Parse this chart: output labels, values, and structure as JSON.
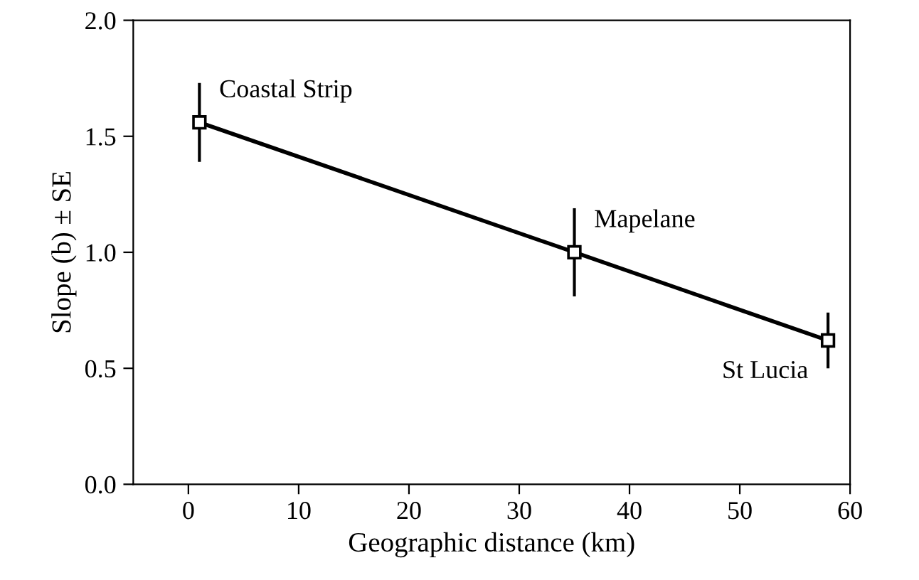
{
  "chart_data": {
    "type": "line",
    "xlabel": "Geographic distance (km)",
    "ylabel": "Slope (b) ± SE",
    "x": [
      1,
      35,
      58
    ],
    "series": [
      {
        "color": "#000000",
        "values": [
          1.56,
          1.0,
          0.62
        ],
        "errors": [
          0.17,
          0.19,
          0.12
        ]
      }
    ],
    "marker": "square",
    "line_style": "solid",
    "xlim": [
      -5,
      60
    ],
    "xticks": [
      0,
      10,
      20,
      30,
      40,
      50,
      60
    ],
    "ylim": [
      0,
      2.0
    ],
    "yticks": [
      {
        "value": 0,
        "label": "0.0"
      },
      {
        "value": 0.5,
        "label": "0.5"
      },
      {
        "value": 1.0,
        "label": "1.0"
      },
      {
        "value": 1.5,
        "label": "1.5"
      },
      {
        "value": 2.0,
        "label": "2.0"
      }
    ],
    "grid": false,
    "annotations": [
      {
        "text": "Coastal Strip",
        "x": 1,
        "y": 1.56
      },
      {
        "text": "Mapelane",
        "x": 35,
        "y": 1.0
      },
      {
        "text": "St Lucia",
        "x": 58,
        "y": 0.62
      }
    ]
  }
}
